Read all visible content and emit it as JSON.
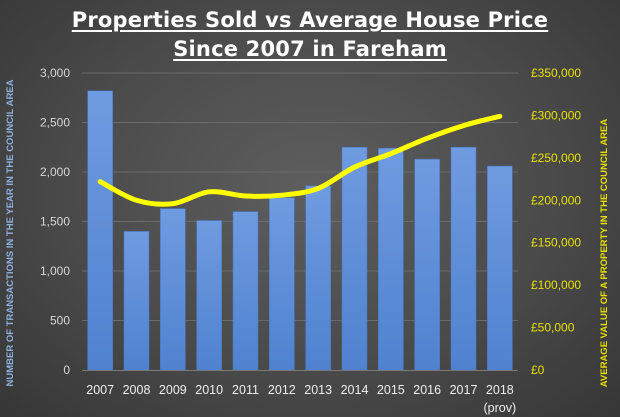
{
  "chart_data": {
    "type": "bar+line",
    "title": [
      "Properties Sold vs Average House Price",
      "Since 2007 in Fareham"
    ],
    "categories": [
      "2007",
      "2008",
      "2009",
      "2010",
      "2011",
      "2012",
      "2013",
      "2014",
      "2015",
      "2016",
      "2017",
      "2018"
    ],
    "category_sublabels": {
      "2018": "(prov)"
    },
    "ylabel_left": "NUMBER OF TRANSACTIONS IN THE YEAR IN THE COUNCIL AREA",
    "ylabel_right": "AVERAGE VALUE  OF A PROPERTY IN THE COUNCIL AREA",
    "ylim_left": [
      0,
      3000
    ],
    "ylim_right": [
      0,
      350000
    ],
    "yticks_left": [
      "0",
      "500",
      "1,000",
      "1,500",
      "2,000",
      "2,500",
      "3,000"
    ],
    "yticks_right": [
      "£0",
      "£50,000",
      "£100,000",
      "£150,000",
      "£200,000",
      "£250,000",
      "£300,000",
      "£350,000"
    ],
    "grid": true,
    "legend": "none",
    "series": [
      {
        "type": "bar",
        "axis": "left",
        "color": "#5b8dd9",
        "values": [
          2820,
          1400,
          1630,
          1510,
          1600,
          1740,
          1860,
          2250,
          2240,
          2130,
          2250,
          2060
        ]
      },
      {
        "type": "line",
        "axis": "right",
        "color": "#ffff00",
        "smooth": true,
        "values": [
          222000,
          200000,
          196000,
          210000,
          205000,
          206000,
          214000,
          239000,
          255000,
          273000,
          288000,
          299000
        ]
      }
    ]
  },
  "colors": {
    "background": "#4a4a4a",
    "left_axis_title": "#8fb0e0",
    "right_axis": "#e8e000",
    "title": "#ffffff"
  }
}
